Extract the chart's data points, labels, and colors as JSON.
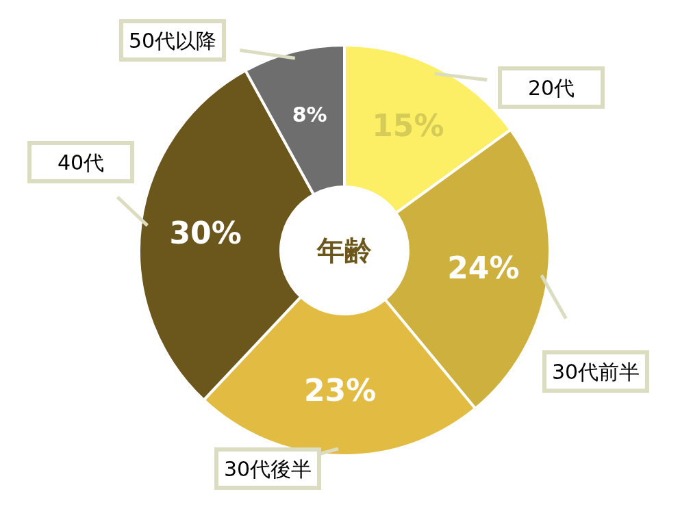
{
  "chart_data": {
    "type": "donut",
    "title": "年齢",
    "categories": [
      "20代",
      "30代前半",
      "30代後半",
      "40代",
      "50代以降"
    ],
    "values": [
      15,
      24,
      23,
      30,
      8
    ],
    "colors": [
      "#fcef66",
      "#cdb03e",
      "#e2bc42",
      "#6b561c",
      "#6e6e6e"
    ],
    "value_labels": [
      "15%",
      "24%",
      "23%",
      "30%",
      "8%"
    ]
  }
}
